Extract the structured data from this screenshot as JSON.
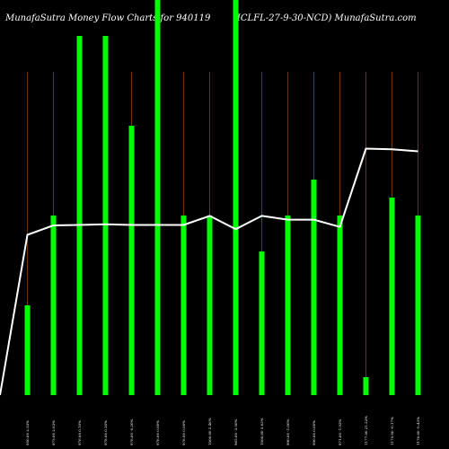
{
  "chart_data": {
    "type": "bar",
    "title_left": "MunafaSutra  Money Flow  Charts for 940119",
    "title_right": "(ICLFL-27-9-30-NCD) MunafaSutra.com",
    "categories": [
      "950.00 2.53%",
      "975.00 2.63%",
      "976.00 0.10%",
      "978.00 0.20%",
      "976.00 -0.20%",
      "976.00 0.00%",
      "976.00 0.00%",
      "1000.00 2.46%",
      "965.00 -3.50%",
      "1000.00 3.63%",
      "990.00 -1.00%",
      "990.00 0.00%",
      "971.00 -1.92%",
      "1177.00 21.22%",
      "1175.00 -0.17%",
      "1170.00 -0.43%"
    ],
    "bar_height_fraction": [
      0.25,
      0.5,
      1.0,
      1.0,
      0.75,
      1.0,
      0.5,
      0.5,
      1.0,
      0.4,
      0.5,
      0.6,
      0.5,
      0.05,
      0.55,
      0.5
    ],
    "price_line": [
      950.0,
      975.0,
      976.0,
      978.0,
      976.0,
      976.0,
      976.0,
      1000.0,
      965.0,
      1000.0,
      990.0,
      990.0,
      971.0,
      1177.0,
      1175.0,
      1170.0
    ],
    "colors": {
      "background": "#000000",
      "bar": "#00ff00",
      "grid": "#b15a1a",
      "line": "#ffffff",
      "text": "#ffffff"
    },
    "grid": true
  }
}
